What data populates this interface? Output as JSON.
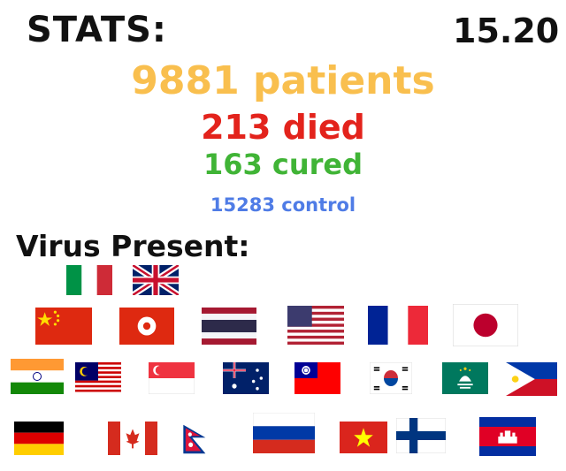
{
  "header": {
    "stats_label": "STATS:",
    "time": "15.20"
  },
  "stats": {
    "patients": "9881 patients",
    "died": "213 died",
    "cured": "163 cured",
    "control": "15283 control"
  },
  "colors": {
    "patients": "#f9bf4e",
    "died": "#e3231c",
    "cured": "#40b436",
    "control": "#4f7ce6"
  },
  "section": {
    "virus_label": "Virus Present:"
  },
  "flags": [
    "italy-flag",
    "uk-flag",
    "china-flag",
    "hong-kong-flag",
    "thailand-flag",
    "usa-flag",
    "france-flag",
    "japan-flag",
    "india-flag",
    "malaysia-flag",
    "singapore-flag",
    "australia-flag",
    "taiwan-flag",
    "south-korea-flag",
    "macau-flag",
    "philippines-flag",
    "germany-flag",
    "canada-flag",
    "nepal-flag",
    "russia-flag",
    "vietnam-flag",
    "finland-flag",
    "cambodia-flag"
  ]
}
